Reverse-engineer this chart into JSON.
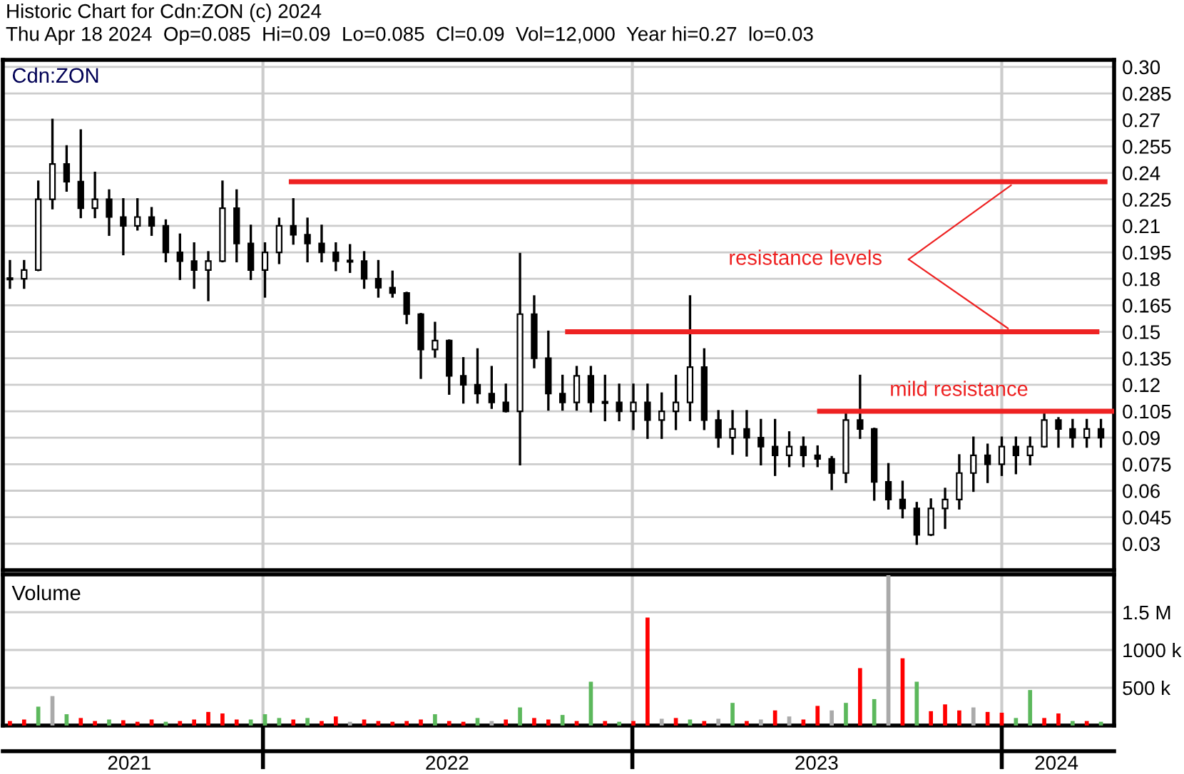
{
  "chart_data": [
    {
      "type": "candlestick",
      "title": "Historic Chart for Cdn:ZON (c) 2024",
      "subtitle": "Thu Apr 18 2024  Op=0.085  Hi=0.09  Lo=0.085  Cl=0.09  Vol=12,000  Year hi=0.27  lo=0.03",
      "color": "#000000",
      "x": [
        "2021-04-26",
        "2021-05-10",
        "2021-05-24",
        "2021-06-07",
        "2021-06-21",
        "2021-07-05",
        "2021-07-19",
        "2021-08-02",
        "2021-08-16",
        "2021-08-30",
        "2021-09-13",
        "2021-09-27",
        "2021-10-11",
        "2021-10-25",
        "2021-11-08",
        "2021-11-22",
        "2021-12-06",
        "2021-12-20",
        "2022-01-03",
        "2022-01-17",
        "2022-01-31",
        "2022-02-14",
        "2022-02-28",
        "2022-03-14",
        "2022-03-28",
        "2022-04-11",
        "2022-04-25",
        "2022-05-09",
        "2022-05-23",
        "2022-06-06",
        "2022-06-20",
        "2022-07-04",
        "2022-07-18",
        "2022-08-01",
        "2022-08-15",
        "2022-08-29",
        "2022-09-12",
        "2022-09-26",
        "2022-10-10",
        "2022-10-24",
        "2022-11-07",
        "2022-11-21",
        "2022-12-05",
        "2022-12-19",
        "2023-01-02",
        "2023-01-16",
        "2023-01-30",
        "2023-02-13",
        "2023-02-27",
        "2023-03-13",
        "2023-03-27",
        "2023-04-10",
        "2023-04-24",
        "2023-05-08",
        "2023-05-22",
        "2023-06-05",
        "2023-06-19",
        "2023-07-03",
        "2023-07-17",
        "2023-07-31",
        "2023-08-14",
        "2023-08-28",
        "2023-09-11",
        "2023-09-25",
        "2023-10-09",
        "2023-10-23",
        "2023-11-06",
        "2023-11-20",
        "2023-12-04",
        "2023-12-18",
        "2024-01-01",
        "2024-01-15",
        "2024-01-29",
        "2024-02-12",
        "2024-02-26",
        "2024-03-11",
        "2024-03-25",
        "2024-04-08"
      ],
      "ohlc": [
        [
          0.18,
          0.19,
          0.175,
          0.18
        ],
        [
          0.18,
          0.19,
          0.175,
          0.185
        ],
        [
          0.185,
          0.235,
          0.185,
          0.225
        ],
        [
          0.225,
          0.27,
          0.22,
          0.245
        ],
        [
          0.245,
          0.255,
          0.23,
          0.235
        ],
        [
          0.235,
          0.264,
          0.215,
          0.22
        ],
        [
          0.22,
          0.24,
          0.215,
          0.225
        ],
        [
          0.225,
          0.23,
          0.205,
          0.215
        ],
        [
          0.215,
          0.225,
          0.194,
          0.21
        ],
        [
          0.21,
          0.225,
          0.208,
          0.215
        ],
        [
          0.215,
          0.22,
          0.205,
          0.21
        ],
        [
          0.21,
          0.213,
          0.19,
          0.195
        ],
        [
          0.195,
          0.205,
          0.18,
          0.19
        ],
        [
          0.19,
          0.2,
          0.175,
          0.185
        ],
        [
          0.185,
          0.195,
          0.168,
          0.19
        ],
        [
          0.19,
          0.235,
          0.19,
          0.22
        ],
        [
          0.22,
          0.23,
          0.19,
          0.2
        ],
        [
          0.2,
          0.21,
          0.18,
          0.185
        ],
        [
          0.185,
          0.2,
          0.17,
          0.195
        ],
        [
          0.195,
          0.214,
          0.189,
          0.21
        ],
        [
          0.21,
          0.225,
          0.2,
          0.205
        ],
        [
          0.205,
          0.214,
          0.19,
          0.2
        ],
        [
          0.2,
          0.21,
          0.19,
          0.195
        ],
        [
          0.195,
          0.2,
          0.185,
          0.19
        ],
        [
          0.19,
          0.199,
          0.184,
          0.19
        ],
        [
          0.19,
          0.195,
          0.175,
          0.18
        ],
        [
          0.18,
          0.19,
          0.17,
          0.175
        ],
        [
          0.175,
          0.184,
          0.17,
          0.172
        ],
        [
          0.172,
          0.172,
          0.155,
          0.16
        ],
        [
          0.16,
          0.16,
          0.124,
          0.14
        ],
        [
          0.14,
          0.155,
          0.136,
          0.145
        ],
        [
          0.145,
          0.145,
          0.115,
          0.125
        ],
        [
          0.125,
          0.135,
          0.11,
          0.12
        ],
        [
          0.12,
          0.14,
          0.11,
          0.115
        ],
        [
          0.115,
          0.13,
          0.107,
          0.11
        ],
        [
          0.11,
          0.12,
          0.105,
          0.105
        ],
        [
          0.105,
          0.194,
          0.075,
          0.16
        ],
        [
          0.16,
          0.17,
          0.13,
          0.135
        ],
        [
          0.135,
          0.15,
          0.106,
          0.115
        ],
        [
          0.115,
          0.125,
          0.106,
          0.11
        ],
        [
          0.11,
          0.13,
          0.106,
          0.125
        ],
        [
          0.125,
          0.13,
          0.105,
          0.11
        ],
        [
          0.11,
          0.125,
          0.1,
          0.11
        ],
        [
          0.11,
          0.12,
          0.1,
          0.105
        ],
        [
          0.105,
          0.12,
          0.095,
          0.11
        ],
        [
          0.11,
          0.12,
          0.09,
          0.1
        ],
        [
          0.1,
          0.115,
          0.09,
          0.105
        ],
        [
          0.105,
          0.125,
          0.095,
          0.11
        ],
        [
          0.11,
          0.17,
          0.1,
          0.13
        ],
        [
          0.13,
          0.14,
          0.095,
          0.1
        ],
        [
          0.1,
          0.105,
          0.085,
          0.09
        ],
        [
          0.09,
          0.105,
          0.081,
          0.095
        ],
        [
          0.095,
          0.105,
          0.08,
          0.09
        ],
        [
          0.09,
          0.1,
          0.075,
          0.085
        ],
        [
          0.085,
          0.1,
          0.069,
          0.08
        ],
        [
          0.08,
          0.093,
          0.074,
          0.085
        ],
        [
          0.085,
          0.09,
          0.074,
          0.08
        ],
        [
          0.08,
          0.085,
          0.074,
          0.078
        ],
        [
          0.078,
          0.079,
          0.061,
          0.07
        ],
        [
          0.07,
          0.105,
          0.065,
          0.1
        ],
        [
          0.1,
          0.125,
          0.09,
          0.095
        ],
        [
          0.095,
          0.095,
          0.055,
          0.065
        ],
        [
          0.065,
          0.075,
          0.05,
          0.055
        ],
        [
          0.055,
          0.065,
          0.045,
          0.05
        ],
        [
          0.05,
          0.053,
          0.03,
          0.035
        ],
        [
          0.035,
          0.055,
          0.035,
          0.05
        ],
        [
          0.05,
          0.061,
          0.039,
          0.055
        ],
        [
          0.055,
          0.08,
          0.05,
          0.07
        ],
        [
          0.07,
          0.09,
          0.06,
          0.08
        ],
        [
          0.08,
          0.086,
          0.065,
          0.075
        ],
        [
          0.075,
          0.09,
          0.069,
          0.085
        ],
        [
          0.085,
          0.09,
          0.07,
          0.08
        ],
        [
          0.08,
          0.09,
          0.075,
          0.085
        ],
        [
          0.085,
          0.105,
          0.085,
          0.1
        ],
        [
          0.1,
          0.101,
          0.085,
          0.095
        ],
        [
          0.095,
          0.1,
          0.085,
          0.09
        ],
        [
          0.09,
          0.1,
          0.085,
          0.095
        ],
        [
          0.095,
          0.1,
          0.085,
          0.09
        ]
      ],
      "series": [
        {
          "type": "line",
          "color": "#ee2222",
          "x": [
            "2022-01-29",
            "2024-04-12"
          ],
          "values": [
            0.235,
            0.235
          ]
        },
        {
          "type": "line",
          "color": "#ee2222",
          "x": [
            "2022-10-29",
            "2024-04-04"
          ],
          "values": [
            0.15,
            0.15
          ]
        },
        {
          "type": "line",
          "color": "#ee2222",
          "x": [
            "2023-07-05",
            "2024-04-21"
          ],
          "values": [
            0.105,
            0.105
          ]
        }
      ],
      "annotations": [
        "Cdn:ZON",
        {
          "text": "resistance levels",
          "x": "2024-01-15",
          "y": 0.235
        },
        "mild resistance"
      ],
      "xlim": [
        "2021-04-19",
        "2024-04-21"
      ],
      "ylim": [
        0.015,
        0.304
      ],
      "xticks": [
        {
          "value": "2022-01-01",
          "label": null
        },
        {
          "value": "2023-01-01",
          "label": null
        },
        {
          "value": "2024-01-01",
          "label": null
        }
      ],
      "yticks": [
        0.03,
        0.045,
        0.06,
        0.075,
        0.09,
        0.105,
        0.12,
        0.135,
        0.15,
        0.165,
        0.18,
        0.195,
        0.21,
        0.225,
        0.24,
        0.255,
        0.27,
        0.285,
        {
          "value": 0.3,
          "label": "0.30"
        }
      ],
      "tick_labels": "y",
      "grid": true
    },
    {
      "type": "bar",
      "title": "Volume",
      "x": [
        "2021-04-26",
        "2021-05-10",
        "2021-05-24",
        "2021-06-07",
        "2021-06-21",
        "2021-07-05",
        "2021-07-19",
        "2021-08-02",
        "2021-08-16",
        "2021-08-30",
        "2021-09-13",
        "2021-09-27",
        "2021-10-11",
        "2021-10-25",
        "2021-11-08",
        "2021-11-22",
        "2021-12-06",
        "2021-12-20",
        "2022-01-03",
        "2022-01-17",
        "2022-01-31",
        "2022-02-14",
        "2022-02-28",
        "2022-03-14",
        "2022-03-28",
        "2022-04-11",
        "2022-04-25",
        "2022-05-09",
        "2022-05-23",
        "2022-06-06",
        "2022-06-20",
        "2022-07-04",
        "2022-07-18",
        "2022-08-01",
        "2022-08-15",
        "2022-08-29",
        "2022-09-12",
        "2022-09-26",
        "2022-10-10",
        "2022-10-24",
        "2022-11-07",
        "2022-11-21",
        "2022-12-05",
        "2022-12-19",
        "2023-01-02",
        "2023-01-16",
        "2023-01-30",
        "2023-02-13",
        "2023-02-27",
        "2023-03-13",
        "2023-03-27",
        "2023-04-10",
        "2023-04-24",
        "2023-05-08",
        "2023-05-22",
        "2023-06-05",
        "2023-06-19",
        "2023-07-03",
        "2023-07-17",
        "2023-07-31",
        "2023-08-14",
        "2023-08-28",
        "2023-09-11",
        "2023-09-25",
        "2023-10-09",
        "2023-10-23",
        "2023-11-06",
        "2023-11-20",
        "2023-12-04",
        "2023-12-18",
        "2024-01-01",
        "2024-01-15",
        "2024-01-29",
        "2024-02-12",
        "2024-02-26",
        "2024-03-11",
        "2024-03-25",
        "2024-04-08"
      ],
      "values": [
        60000,
        80000,
        250000,
        390000,
        150000,
        100000,
        60000,
        80000,
        70000,
        50000,
        80000,
        50000,
        60000,
        80000,
        180000,
        160000,
        80000,
        80000,
        150000,
        100000,
        80000,
        100000,
        60000,
        120000,
        50000,
        80000,
        60000,
        50000,
        60000,
        80000,
        150000,
        60000,
        50000,
        100000,
        60000,
        80000,
        240000,
        100000,
        80000,
        140000,
        60000,
        580000,
        60000,
        50000,
        60000,
        1430000,
        90000,
        100000,
        80000,
        60000,
        90000,
        300000,
        60000,
        80000,
        200000,
        120000,
        80000,
        260000,
        200000,
        300000,
        760000,
        350000,
        1990000,
        890000,
        580000,
        190000,
        280000,
        200000,
        240000,
        180000,
        170000,
        100000,
        470000,
        100000,
        160000,
        60000,
        60000,
        50000
      ],
      "colors": [
        "#ff0000",
        "#ff0000",
        "#5cb85c",
        "#aaaaaa",
        "#5cb85c",
        "#ff0000",
        "#ff0000",
        "#5cb85c",
        "#ff0000",
        "#ff0000",
        "#ff0000",
        "#5cb85c",
        "#ff0000",
        "#ff0000",
        "#ff0000",
        "#ff0000",
        "#ff0000",
        "#5cb85c",
        "#5cb85c",
        "#5cb85c",
        "#ff0000",
        "#5cb85c",
        "#ff0000",
        "#ff0000",
        "#aaaaaa",
        "#ff0000",
        "#ff0000",
        "#ff0000",
        "#ff0000",
        "#ff0000",
        "#5cb85c",
        "#ff0000",
        "#ff0000",
        "#5cb85c",
        "#aaaaaa",
        "#ff0000",
        "#5cb85c",
        "#ff0000",
        "#ff0000",
        "#5cb85c",
        "#ff0000",
        "#5cb85c",
        "#ff0000",
        "#5cb85c",
        "#ff0000",
        "#ff0000",
        "#aaaaaa",
        "#ff0000",
        "#5cb85c",
        "#ff0000",
        "#aaaaaa",
        "#5cb85c",
        "#ff0000",
        "#aaaaaa",
        "#ff0000",
        "#aaaaaa",
        "#ff0000",
        "#ff0000",
        "#aaaaaa",
        "#5cb85c",
        "#ff0000",
        "#5cb85c",
        "#aaaaaa",
        "#ff0000",
        "#5cb85c",
        "#ff0000",
        "#ff0000",
        "#ff0000",
        "#aaaaaa",
        "#ff0000",
        "#ff0000",
        "#5cb85c",
        "#5cb85c",
        "#ff0000",
        "#ff0000",
        "#5cb85c",
        "#ff0000",
        "#5cb85c"
      ],
      "xlim": [
        "2021-04-19",
        "2024-04-21"
      ],
      "ylim": [
        0,
        2000000
      ],
      "xticks": [
        {
          "value": "2021-08-22",
          "label": "2021"
        },
        {
          "value": "2022-01-01",
          "label": null
        },
        {
          "value": "2022-07-02",
          "label": "2022"
        },
        {
          "value": "2023-01-01",
          "label": null
        },
        {
          "value": "2023-07-02",
          "label": "2023"
        },
        {
          "value": "2024-01-01",
          "label": null
        },
        {
          "value": "2024-02-24",
          "label": "2024"
        }
      ],
      "yticks": [
        {
          "value": 500000,
          "label": "500 k"
        },
        {
          "value": 1000000,
          "label": "1000 k"
        },
        {
          "value": 1500000,
          "label": "1.5 M"
        }
      ],
      "grid": true
    }
  ]
}
